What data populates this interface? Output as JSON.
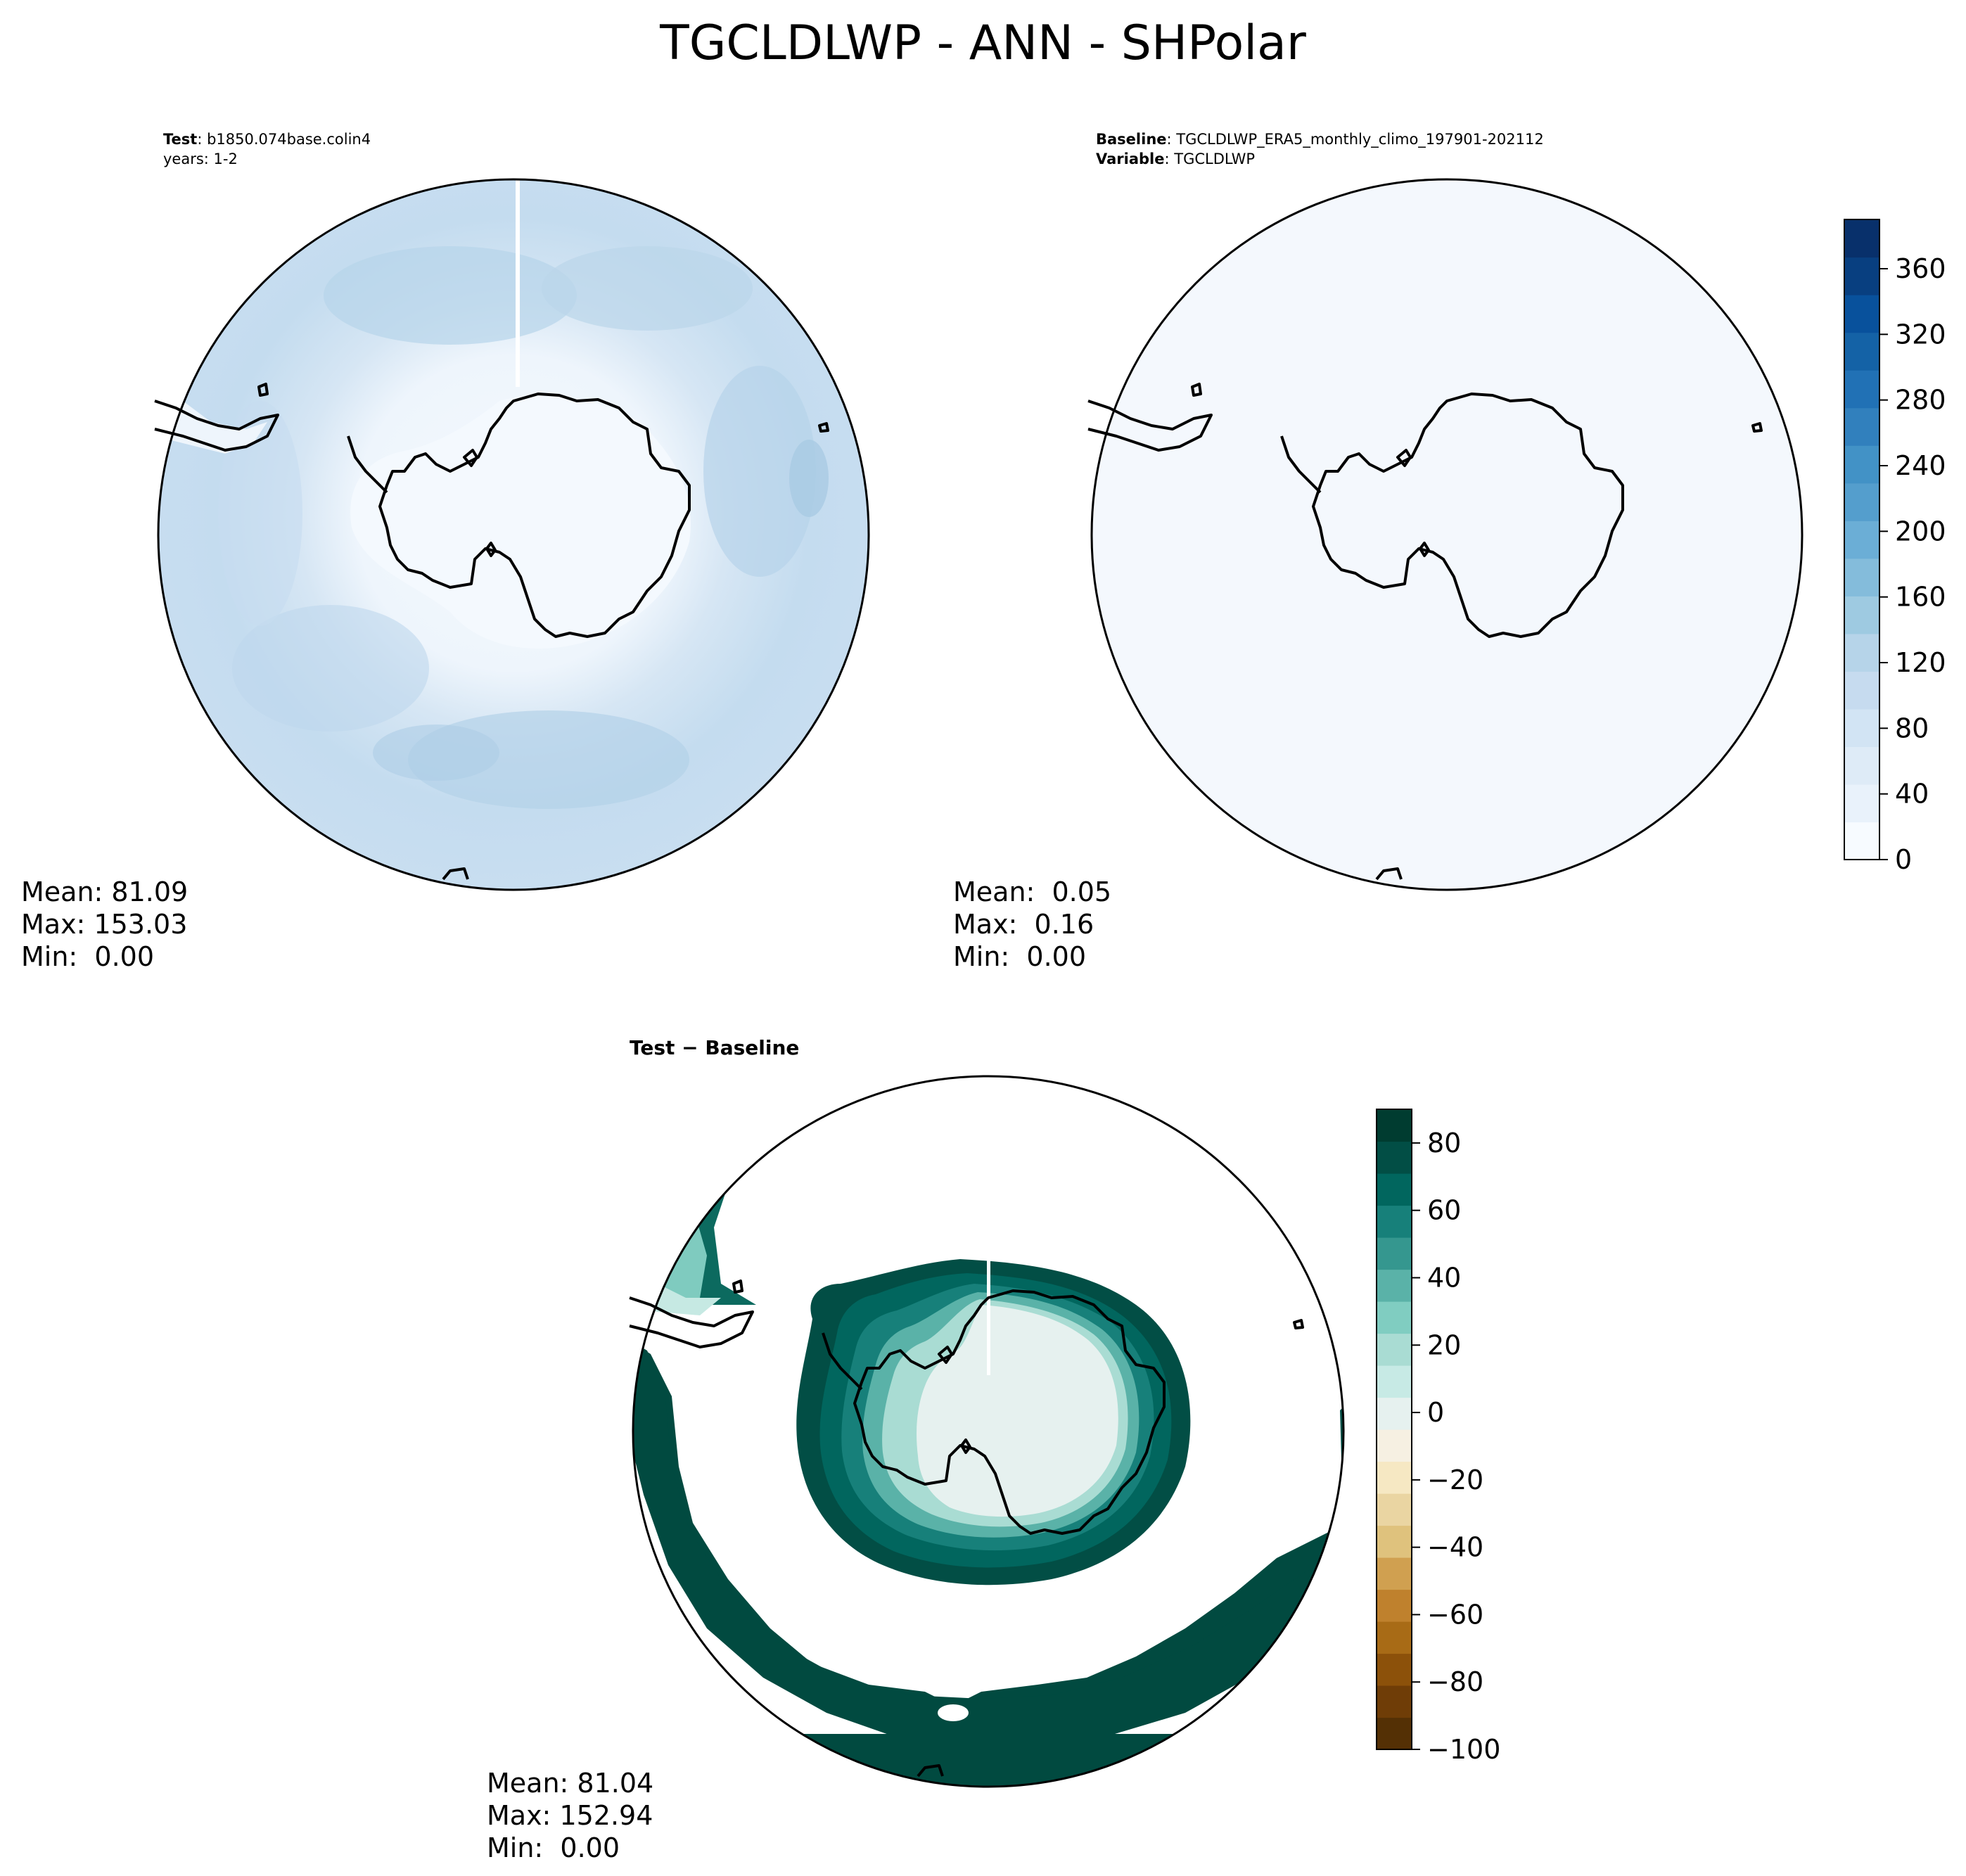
{
  "figure_title": "TGCLDLWP - ANN - SHPolar",
  "test_panel": {
    "label_key": "Test",
    "label_value": "b1850.074base.colin4",
    "line2": "years: 1-2",
    "mean": "Mean: 81.09",
    "max": "Max: 153.03",
    "min": "Min:  0.00"
  },
  "baseline_panel": {
    "label_key": "Baseline",
    "label_value": "TGCLDLWP_ERA5_monthly_climo_197901-202112",
    "label2_key": "Variable",
    "label2_value": "TGCLDLWP",
    "mean": "Mean:  0.05",
    "max": "Max:  0.16",
    "min": "Min:  0.00"
  },
  "diff_panel": {
    "title_a": "Test",
    "title_sep": " − ",
    "title_b": "Baseline",
    "mean": "Mean: 81.04",
    "max": "Max: 152.94",
    "min": "Min:  0.00"
  },
  "chart_data": [
    {
      "type": "heatmap",
      "panel": "test",
      "projection": "south polar stereographic",
      "colormap": "Blues",
      "colorbar_ticks": [
        0,
        40,
        80,
        120,
        160,
        200,
        240,
        280,
        320,
        360
      ],
      "colorbar_range": [
        0,
        390
      ],
      "stats": {
        "mean": 81.09,
        "max": 153.03,
        "min": 0.0
      }
    },
    {
      "type": "heatmap",
      "panel": "baseline",
      "projection": "south polar stereographic",
      "colormap": "Blues",
      "colorbar_ticks": [
        0,
        40,
        80,
        120,
        160,
        200,
        240,
        280,
        320,
        360
      ],
      "colorbar_range": [
        0,
        390
      ],
      "stats": {
        "mean": 0.05,
        "max": 0.16,
        "min": 0.0
      }
    },
    {
      "type": "heatmap",
      "panel": "difference",
      "projection": "south polar stereographic",
      "colormap": "BrBG",
      "colorbar_ticks": [
        80,
        60,
        40,
        20,
        0,
        -20,
        -40,
        -60,
        -80,
        -100
      ],
      "colorbar_range": [
        -100,
        90
      ],
      "stats": {
        "mean": 81.04,
        "max": 152.94,
        "min": 0.0
      }
    }
  ],
  "colors": {
    "blues": [
      "#f7fbff",
      "#e9f2fb",
      "#deebf7",
      "#d2e4f4",
      "#c6dbef",
      "#b6d4e9",
      "#9ecae1",
      "#84bcdb",
      "#6baed6",
      "#549ecd",
      "#4292c6",
      "#3180bd",
      "#2171b5",
      "#1462a6",
      "#08519c",
      "#083f80",
      "#08306b"
    ],
    "brbg": [
      "#543005",
      "#6f3d07",
      "#8c510a",
      "#a86b16",
      "#bf812d",
      "#d0a050",
      "#dfc27d",
      "#ead5a2",
      "#f6e8c3",
      "#f6f0e2",
      "#e6f1ef",
      "#c7eae5",
      "#a9dcd3",
      "#80cdc1",
      "#5ab2a8",
      "#35978f",
      "#17807a",
      "#01665e",
      "#024e45",
      "#003c30"
    ]
  }
}
